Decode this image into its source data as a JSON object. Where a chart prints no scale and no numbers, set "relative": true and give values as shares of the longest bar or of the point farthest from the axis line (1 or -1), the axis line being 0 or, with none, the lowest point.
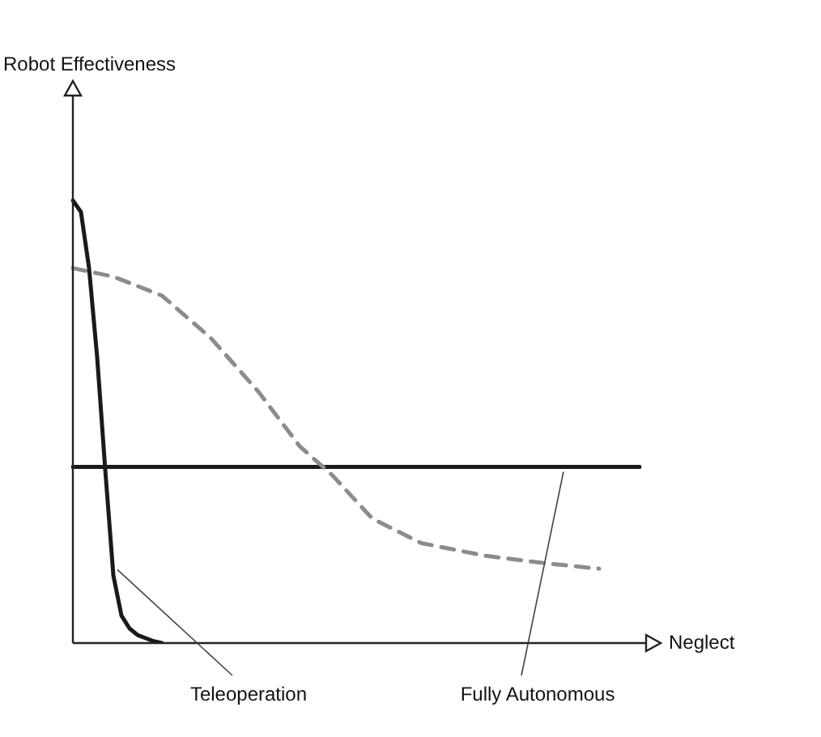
{
  "chart_data": {
    "type": "line",
    "relative": true,
    "annotations": [
      "Robot Effectiveness"
    ],
    "xlabel": "Neglect",
    "legend": false,
    "marker": "none",
    "categories": [
      null,
      null,
      null,
      null,
      null,
      null,
      null,
      null,
      null,
      null,
      null,
      null,
      null,
      null,
      null,
      null,
      null,
      null,
      null,
      null,
      null,
      null,
      null,
      null,
      null,
      null,
      null,
      null,
      null,
      null,
      null,
      null,
      null,
      null,
      null,
      null,
      null,
      null,
      null,
      null,
      null,
      null,
      null,
      null,
      null,
      null,
      null,
      null,
      null,
      null,
      null,
      null,
      null,
      null,
      null,
      null,
      null,
      null,
      null,
      null,
      null,
      null,
      null,
      null,
      null,
      null,
      null,
      null,
      null,
      null,
      null
    ],
    "series": [
      {
        "name": "Teleoperation",
        "color": "#1a1a1a",
        "line_style": "solid",
        "values": [
          1,
          0.974,
          0.847,
          0.646,
          0.391,
          0.153,
          0.062,
          0.033,
          0.018,
          0.011,
          0.004,
          0,
          null,
          null,
          null,
          null,
          null,
          null,
          null,
          null,
          null,
          null,
          null,
          null,
          null,
          null,
          null,
          null,
          null,
          null,
          null,
          null,
          null,
          null,
          null,
          null,
          null,
          null,
          null,
          null,
          null,
          null,
          null,
          null,
          null,
          null,
          null,
          null,
          null,
          null,
          null,
          null,
          null,
          null,
          null,
          null,
          null,
          null,
          null,
          null,
          null,
          null,
          null,
          null,
          null,
          null,
          null,
          null,
          null,
          null,
          null
        ]
      },
      {
        "color": "#8c8c8c",
        "line_style": "dashed",
        "values": [
          0.847,
          null,
          null,
          null,
          null,
          0.828,
          null,
          null,
          null,
          null,
          null,
          0.785,
          null,
          null,
          null,
          null,
          null,
          0.69,
          null,
          null,
          null,
          null,
          null,
          0.566,
          null,
          null,
          null,
          null,
          0.445,
          null,
          null,
          null,
          0.38,
          null,
          null,
          null,
          null,
          0.281,
          null,
          null,
          null,
          null,
          null,
          0.226,
          null,
          null,
          null,
          null,
          null,
          null,
          null,
          0.197,
          null,
          null,
          null,
          null,
          null,
          null,
          null,
          0.179,
          null,
          null,
          null,
          null,
          null,
          0.168,
          null,
          null,
          null,
          null,
          null
        ]
      },
      {
        "name": "Fully Autonomous",
        "color": "#1a1a1a",
        "line_style": "solid",
        "values": [
          0.398,
          null,
          null,
          null,
          null,
          null,
          null,
          null,
          null,
          null,
          null,
          null,
          null,
          null,
          null,
          null,
          null,
          null,
          null,
          null,
          null,
          null,
          null,
          null,
          null,
          null,
          null,
          null,
          null,
          null,
          null,
          null,
          null,
          null,
          null,
          null,
          null,
          null,
          null,
          null,
          null,
          null,
          null,
          null,
          null,
          null,
          null,
          null,
          null,
          null,
          null,
          null,
          null,
          null,
          null,
          null,
          null,
          null,
          null,
          null,
          null,
          null,
          null,
          null,
          null,
          null,
          null,
          null,
          null,
          null,
          0.398
        ]
      }
    ]
  }
}
